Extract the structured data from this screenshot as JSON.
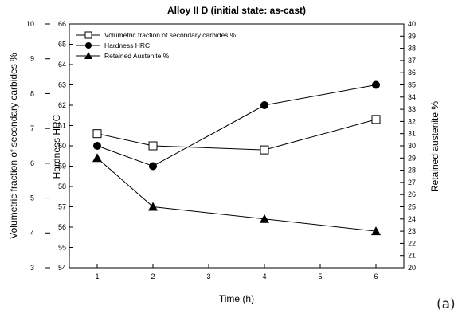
{
  "panel_label": "(a)",
  "chart_data": {
    "type": "line",
    "title": "Alloy II D (initial state: as-cast)",
    "xlabel": "Time  (h)",
    "x_ticks": [
      "1",
      "2",
      "3",
      "4",
      "5",
      "6"
    ],
    "xlim": [
      0.5,
      6.5
    ],
    "y_axes": {
      "hardness": {
        "label": "Hardness HRC",
        "range": [
          54,
          66
        ],
        "ticks": [
          "54",
          "55",
          "56",
          "57",
          "58",
          "59",
          "60",
          "61",
          "62",
          "63",
          "64",
          "65",
          "66"
        ]
      },
      "carbides": {
        "label": "Volumetric fraction of secondary carbides %",
        "range": [
          3,
          10
        ],
        "ticks": [
          "3",
          "4",
          "5",
          "6",
          "7",
          "8",
          "9",
          "10"
        ]
      },
      "austenite": {
        "label": "Retained austenite %",
        "range": [
          20,
          40
        ],
        "ticks": [
          "20",
          "21",
          "22",
          "23",
          "24",
          "25",
          "26",
          "27",
          "28",
          "29",
          "30",
          "31",
          "32",
          "33",
          "34",
          "35",
          "36",
          "37",
          "38",
          "39",
          "40"
        ]
      }
    },
    "series": [
      {
        "name": "Volumetric fraction of secondary carbides %",
        "axis": "hardness",
        "marker": "open-square",
        "x": [
          1,
          2,
          4,
          6
        ],
        "y": [
          60.6,
          60.0,
          59.8,
          61.3
        ]
      },
      {
        "name": "Hardness HRC",
        "axis": "hardness",
        "marker": "filled-circle",
        "x": [
          1,
          2,
          4,
          6
        ],
        "y": [
          60.0,
          59.0,
          62.0,
          63.0
        ]
      },
      {
        "name": "Retained Austenite %",
        "axis": "hardness",
        "marker": "filled-triangle",
        "x": [
          1,
          2,
          4,
          6
        ],
        "y": [
          59.4,
          57.0,
          56.4,
          55.8
        ]
      }
    ],
    "legend_position": "top-left",
    "grid": false
  }
}
